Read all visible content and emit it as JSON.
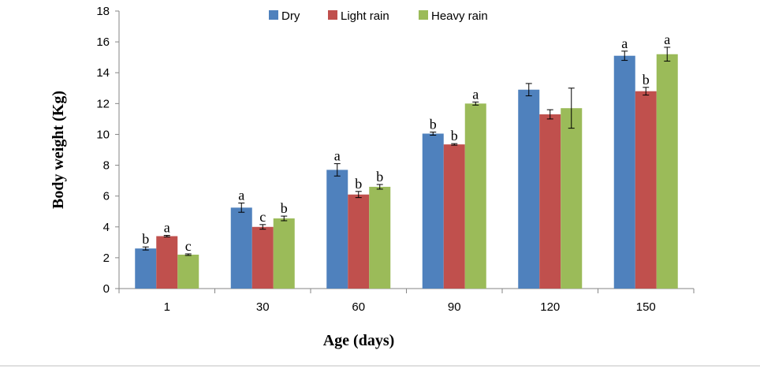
{
  "chart_data": {
    "type": "bar",
    "title": "",
    "xlabel": "Age (days)",
    "ylabel": "Body weight (Kg)",
    "ylim": [
      0,
      18
    ],
    "yticks": [
      0,
      2,
      4,
      6,
      8,
      10,
      12,
      14,
      16,
      18
    ],
    "grid": false,
    "legend_position": "top",
    "categories": [
      "1",
      "30",
      "60",
      "90",
      "120",
      "150"
    ],
    "series": [
      {
        "name": "Dry",
        "color": "#4f81bd",
        "values": [
          2.6,
          5.25,
          7.7,
          10.05,
          12.9,
          15.1
        ],
        "errors": [
          0.1,
          0.3,
          0.4,
          0.1,
          0.4,
          0.3
        ],
        "labels": [
          "b",
          "a",
          "a",
          "b",
          "",
          "a"
        ]
      },
      {
        "name": "Light rain",
        "color": "#c0504d",
        "values": [
          3.4,
          4.0,
          6.1,
          9.35,
          11.3,
          12.8
        ],
        "errors": [
          0.05,
          0.15,
          0.2,
          0.05,
          0.3,
          0.25
        ],
        "labels": [
          "a",
          "c",
          "b",
          "b",
          "",
          "b"
        ]
      },
      {
        "name": "Heavy rain",
        "color": "#9bbb59",
        "values": [
          2.2,
          4.55,
          6.6,
          12.0,
          11.7,
          15.2
        ],
        "errors": [
          0.05,
          0.15,
          0.15,
          0.1,
          1.3,
          0.45
        ],
        "labels": [
          "c",
          "b",
          "b",
          "a",
          "",
          "a"
        ]
      }
    ]
  }
}
